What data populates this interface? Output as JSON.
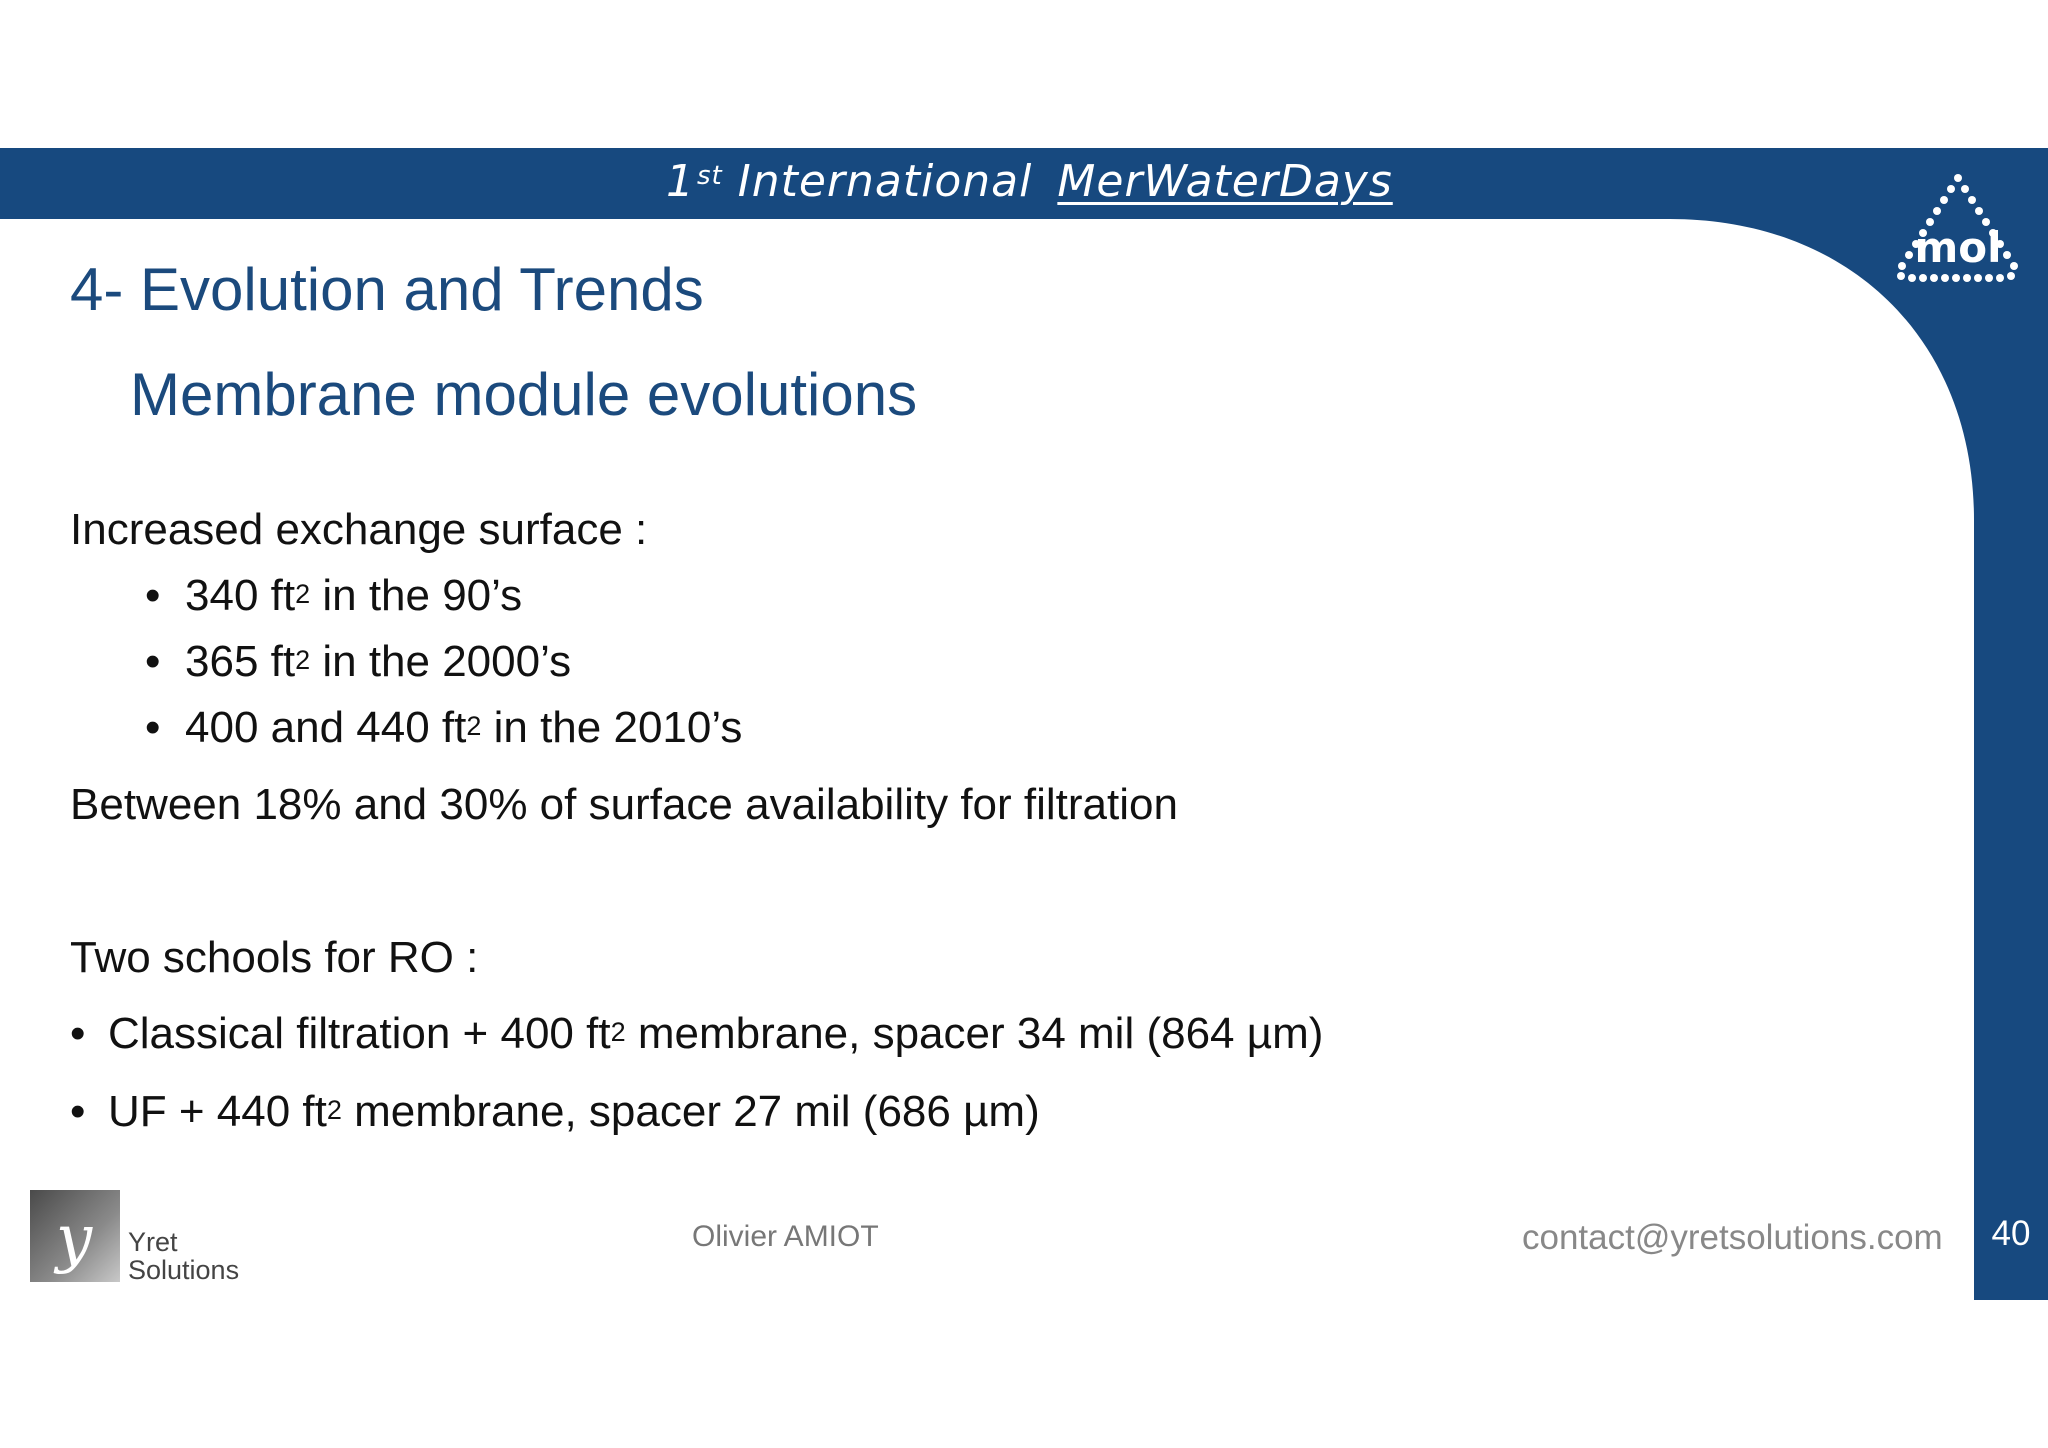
{
  "header": {
    "event_prefix": "1",
    "event_ordinal": "st",
    "event_word": "International",
    "event_brand": "MerWaterDays",
    "logo_text": "mol"
  },
  "slide": {
    "title": "4- Evolution and Trends",
    "subtitle": "Membrane module evolutions"
  },
  "body": {
    "intro": "Increased exchange surface :",
    "surface_items": [
      {
        "pre": "340 ft",
        "sup": "2",
        "post": " in the 90’s"
      },
      {
        "pre": "365 ft",
        "sup": "2",
        "post": " in the 2000’s"
      },
      {
        "pre": "400 and 440 ft",
        "sup": "2",
        "post": " in the 2010’s"
      }
    ],
    "availability": "Between 18% and 30% of surface availability for filtration",
    "ro_intro": "Two schools for RO :",
    "ro_items": [
      {
        "pre": "Classical filtration + 400 ft",
        "sup": "2",
        "post": " membrane, spacer 34 mil (864 µm)"
      },
      {
        "pre": "UF + 440 ft",
        "sup": "2",
        "post": " membrane, spacer 27 mil (686 µm)"
      }
    ],
    "bullet_char": "•"
  },
  "footer": {
    "logo_letter": "y",
    "logo_line1": "Yret",
    "logo_line2": "Solutions",
    "presenter": "Olivier AMIOT",
    "contact": "contact@yretsolutions.com",
    "page_number": "40"
  },
  "colors": {
    "brand_blue": "#17497f",
    "title_blue": "#1b4a7d"
  }
}
